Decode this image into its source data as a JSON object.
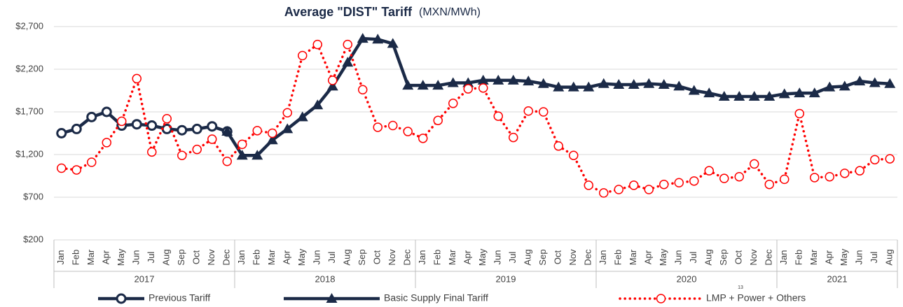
{
  "chart_data": {
    "type": "line",
    "title": "Average \"DIST\" Tariff",
    "unit_label": "(MXN/MWh)",
    "page_number": "13",
    "groups": [
      {
        "label": "2017",
        "categories": [
          "Jan",
          "Feb",
          "Mar",
          "Apr",
          "May",
          "Jun",
          "Jul",
          "Aug",
          "Sep",
          "Oct",
          "Nov",
          "Dec"
        ]
      },
      {
        "label": "2018",
        "categories": [
          "Jan",
          "Feb",
          "Mar",
          "Apr",
          "May",
          "Jun",
          "Jul",
          "Aug",
          "Sep",
          "Oct",
          "Nov",
          "Dec"
        ]
      },
      {
        "label": "2019",
        "categories": [
          "Jan",
          "Feb",
          "Mar",
          "Apr",
          "May",
          "Jun",
          "Jul",
          "Aug",
          "Sep",
          "Oct",
          "Nov",
          "Dec"
        ]
      },
      {
        "label": "2020",
        "categories": [
          "Jan",
          "Feb",
          "Mar",
          "Apr",
          "May",
          "Jun",
          "Jul",
          "Aug",
          "Sep",
          "Oct",
          "Nov",
          "Dec"
        ]
      },
      {
        "label": "2021",
        "categories": [
          "Jan",
          "Feb",
          "Mar",
          "Apr",
          "May",
          "Jun",
          "Jul",
          "Aug"
        ]
      }
    ],
    "ylim": [
      200,
      2700
    ],
    "yticks": [
      {
        "value": 200,
        "label": "$200"
      },
      {
        "value": 700,
        "label": "$700"
      },
      {
        "value": 1200,
        "label": "$1,200"
      },
      {
        "value": 1700,
        "label": "$1,700"
      },
      {
        "value": 2200,
        "label": "$2,200"
      },
      {
        "value": 2700,
        "label": "$2,700"
      }
    ],
    "grid": true,
    "series": [
      {
        "name": "Previous Tariff",
        "color": "#1b2a47",
        "marker": "circle",
        "dash": "solid",
        "values": [
          1450,
          1500,
          1640,
          1700,
          1540,
          1555,
          1540,
          1500,
          1485,
          1500,
          1530,
          1470,
          null,
          null,
          null,
          null,
          null,
          null,
          null,
          null,
          null,
          null,
          null,
          null,
          null,
          null,
          null,
          null,
          null,
          null,
          null,
          null,
          null,
          null,
          null,
          null,
          null,
          null,
          null,
          null,
          null,
          null,
          null,
          null,
          null,
          null,
          null,
          null,
          null,
          null,
          null,
          null,
          null,
          null,
          null,
          null
        ]
      },
      {
        "name": "Basic Supply Final Tariff",
        "color": "#1b2a47",
        "marker": "triangle",
        "dash": "solid",
        "values": [
          null,
          null,
          null,
          null,
          null,
          null,
          null,
          null,
          null,
          null,
          null,
          1470,
          1190,
          1190,
          1370,
          1500,
          1640,
          1780,
          2000,
          2280,
          2560,
          2550,
          2500,
          2010,
          2010,
          2010,
          2040,
          2040,
          2070,
          2070,
          2070,
          2060,
          2030,
          1990,
          1990,
          1990,
          2030,
          2020,
          2020,
          2030,
          2020,
          2000,
          1950,
          1920,
          1880,
          1880,
          1880,
          1880,
          1910,
          1920,
          1920,
          1990,
          2000,
          2060,
          2040,
          2030
        ]
      },
      {
        "name": "LMP + Power + Others",
        "color": "#ff0000",
        "marker": "circle",
        "dash": "dotted",
        "values": [
          1040,
          1020,
          1110,
          1340,
          1590,
          2090,
          1230,
          1620,
          1190,
          1260,
          1380,
          1120,
          1320,
          1480,
          1450,
          1690,
          2360,
          2490,
          2070,
          2490,
          1960,
          1520,
          1540,
          1470,
          1390,
          1600,
          1800,
          1970,
          1980,
          1650,
          1400,
          1710,
          1700,
          1300,
          1190,
          840,
          750,
          790,
          840,
          790,
          850,
          870,
          890,
          1010,
          920,
          940,
          1090,
          850,
          910,
          1680,
          930,
          940,
          980,
          1010,
          1140,
          1150
        ]
      }
    ]
  }
}
